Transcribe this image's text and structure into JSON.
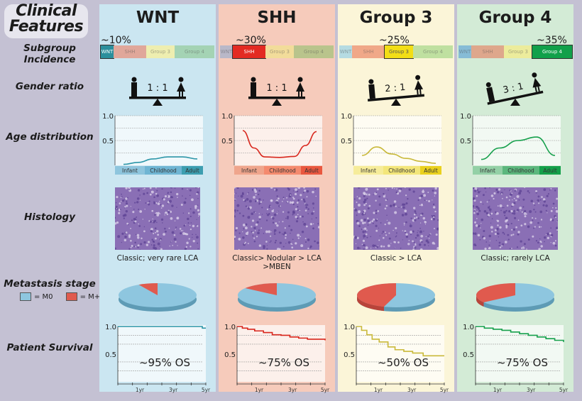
{
  "title": {
    "line1": "Clinical",
    "line2": "Features"
  },
  "row_labels": {
    "incidence": "Subgroup Incidence",
    "gender": "Gender ratio",
    "age": "Age distribution",
    "histology": "Histology",
    "metastasis": "Metastasis stage",
    "survival": "Patient Survival"
  },
  "legend": {
    "m0_label": "= M0",
    "mplus_label": "= M+",
    "m0_color": "#8ec6df",
    "mplus_color": "#e05a4e"
  },
  "incidence_segments": [
    "WNT",
    "SHH",
    "Group 3",
    "Group 4"
  ],
  "age_axis": {
    "ticks": [
      "1.0",
      "0.5"
    ],
    "bins": [
      "Infant",
      "Childhood",
      "Adult"
    ]
  },
  "survival_axis": {
    "ticks": [
      "1.0",
      "0.5"
    ],
    "xticks": [
      "1yr",
      "3yr",
      "5yr"
    ]
  },
  "chart_data": [
    {
      "type": "line",
      "title": "Age distribution",
      "series": [
        {
          "name": "WNT",
          "x": [
            0,
            0.2,
            0.4,
            0.6,
            0.8,
            1.0
          ],
          "values": [
            0.02,
            0.06,
            0.13,
            0.17,
            0.17,
            0.13
          ]
        },
        {
          "name": "SHH",
          "x": [
            0,
            0.15,
            0.3,
            0.5,
            0.7,
            0.85,
            1.0
          ],
          "values": [
            0.7,
            0.35,
            0.17,
            0.16,
            0.18,
            0.4,
            0.68
          ]
        },
        {
          "name": "Group 3",
          "x": [
            0,
            0.2,
            0.4,
            0.6,
            0.8,
            1.0
          ],
          "values": [
            0.2,
            0.37,
            0.23,
            0.14,
            0.08,
            0.04
          ]
        },
        {
          "name": "Group 4",
          "x": [
            0,
            0.25,
            0.5,
            0.75,
            1.0
          ],
          "values": [
            0.12,
            0.35,
            0.5,
            0.57,
            0.2
          ]
        }
      ],
      "categories": [
        "Infant",
        "Childhood",
        "Adult"
      ],
      "ylim": [
        0,
        1.0
      ]
    },
    {
      "type": "pie",
      "title": "Metastasis stage",
      "series": [
        {
          "name": "WNT",
          "values": {
            "M0": 0.92,
            "M+": 0.08
          }
        },
        {
          "name": "SHH",
          "values": {
            "M0": 0.85,
            "M+": 0.15
          }
        },
        {
          "name": "Group 3",
          "values": {
            "M0": 0.55,
            "M+": 0.45
          }
        },
        {
          "name": "Group 4",
          "values": {
            "M0": 0.65,
            "M+": 0.35
          }
        }
      ]
    },
    {
      "type": "line",
      "title": "Patient Survival",
      "xlabel": "years",
      "xlim": [
        0,
        5
      ],
      "ylim": [
        0,
        1.0
      ],
      "series": [
        {
          "name": "WNT",
          "x": [
            0,
            4.8,
            4.8,
            5
          ],
          "values": [
            1.0,
            1.0,
            0.97,
            0.97
          ]
        },
        {
          "name": "SHH",
          "x": [
            0,
            0.3,
            0.6,
            1,
            1.5,
            2,
            2.5,
            3,
            3.5,
            4,
            4.5,
            5
          ],
          "values": [
            1.0,
            0.97,
            0.95,
            0.92,
            0.89,
            0.85,
            0.84,
            0.81,
            0.79,
            0.77,
            0.77,
            0.75
          ]
        },
        {
          "name": "Group 3",
          "x": [
            0,
            0.3,
            0.6,
            0.9,
            1.3,
            1.8,
            2.2,
            2.7,
            3.2,
            3.8,
            4.2,
            5
          ],
          "values": [
            1.0,
            0.93,
            0.85,
            0.77,
            0.72,
            0.63,
            0.58,
            0.55,
            0.52,
            0.47,
            0.47,
            0.47
          ]
        },
        {
          "name": "Group 4",
          "x": [
            0,
            0.5,
            1,
            1.5,
            2,
            2.5,
            3,
            3.5,
            4,
            4.5,
            5
          ],
          "values": [
            1.0,
            0.97,
            0.95,
            0.93,
            0.9,
            0.87,
            0.84,
            0.81,
            0.78,
            0.75,
            0.72
          ]
        }
      ]
    }
  ],
  "subgroups": [
    {
      "name": "WNT",
      "incidence": "~10%",
      "incidence_index": 0,
      "bg": "#cbe6f1",
      "line_color": "#2c96a8",
      "bar_colors": [
        "#2b8f9c",
        "#e0a79a",
        "#eeeeb0",
        "#a4d3b4"
      ],
      "bin_colors": [
        "#8ec5dd",
        "#6fb5d3",
        "#3d9eb0"
      ],
      "gender_ratio": "1 : 1",
      "tilt": 0,
      "histology_caption": "Classic; very rare LCA",
      "os_label": "~95% OS"
    },
    {
      "name": "SHH",
      "incidence": "~30%",
      "incidence_index": 1,
      "bg": "#f6cbbb",
      "line_color": "#d8261c",
      "bar_colors": [
        "#b9b8c8",
        "#e32a22",
        "#f2dc9a",
        "#b9c48c"
      ],
      "bin_colors": [
        "#efa58c",
        "#f48a6e",
        "#e9573f"
      ],
      "gender_ratio": "1 : 1",
      "tilt": 0,
      "histology_caption": "Classic> Nodular > LCA >MBEN",
      "os_label": "~75% OS"
    },
    {
      "name": "Group 3",
      "incidence": "~25%",
      "incidence_index": 2,
      "bg": "#fbf5d8",
      "line_color": "#c9b93a",
      "bar_colors": [
        "#b5dbe2",
        "#f0a888",
        "#f2de16",
        "#bfe0a0"
      ],
      "bin_colors": [
        "#f6ec9a",
        "#f3e67a",
        "#ead11f"
      ],
      "gender_ratio": "2 : 1",
      "tilt": -5,
      "histology_caption": "Classic > LCA",
      "os_label": "~50% OS"
    },
    {
      "name": "Group 4",
      "incidence": "~35%",
      "incidence_index": 3,
      "bg": "#d3ebd6",
      "line_color": "#16a04c",
      "bar_colors": [
        "#86bcd6",
        "#dea78c",
        "#ecec9c",
        "#11a04a"
      ],
      "bin_colors": [
        "#93d0a6",
        "#5cb77d",
        "#14a04a"
      ],
      "gender_ratio": "3 : 1",
      "tilt": -12,
      "histology_caption": "Classic; rarely LCA",
      "os_label": "~75% OS"
    }
  ]
}
